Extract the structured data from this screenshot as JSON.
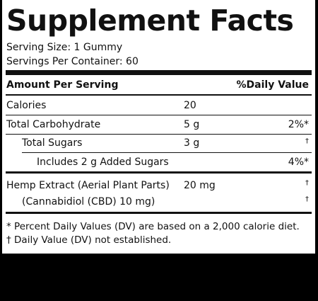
{
  "title": "Supplement Facts",
  "serving_size": "Serving Size: 1 Gummy",
  "servings_per_container": "Servings Per Container: 60",
  "header": {
    "amount": "Amount Per Serving",
    "dv": "%Daily Value"
  },
  "rows": [
    {
      "name": "Calories",
      "amount": "20"
    },
    {
      "name": "Total Carbohydrate",
      "amount": "5 g",
      "dv": "2%*"
    },
    {
      "name": "Total Sugars",
      "amount": "3 g",
      "dv": "†"
    },
    {
      "name": "Includes 2 g Added Sugars",
      "dv": "4%*"
    },
    {
      "name": "Hemp Extract (Aerial Plant Parts)",
      "amount": "20 mg",
      "dv": "†"
    },
    {
      "name": "(Cannabidiol (CBD) 10 mg)",
      "dv": "†"
    }
  ],
  "footnotes": [
    "* Percent Daily Values (DV) are based on a 2,000 calorie diet.",
    "† Daily Value (DV) not established."
  ]
}
